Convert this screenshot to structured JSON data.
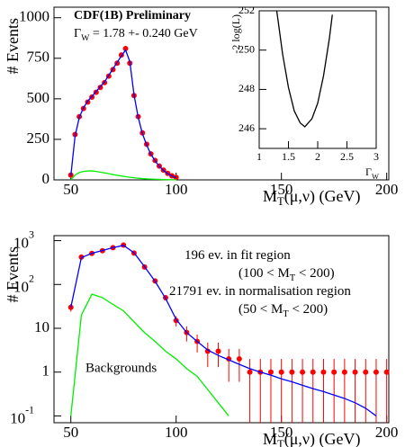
{
  "chart_data": [
    {
      "type": "line",
      "title": "CDF(1B) Preliminary",
      "title_color": "#ff00ff",
      "annotation": {
        "text": "Γ",
        "sub": "W",
        "rest": " = 1.78 +- 0.240 GeV",
        "color": "#ff0000"
      },
      "y_label": "# Events",
      "x_label": {
        "text": "M",
        "sub": "T",
        "rest": "(μ,ν) (GeV)"
      },
      "xlim": [
        42,
        201
      ],
      "xticks": [
        50,
        100,
        150,
        200
      ],
      "ylim": [
        0,
        1065
      ],
      "yticks": [
        0,
        250,
        500,
        750,
        1000
      ],
      "x": [
        50,
        52,
        54,
        56,
        58,
        60,
        62,
        64,
        66,
        68,
        70,
        72,
        74,
        76,
        78,
        80,
        82,
        84,
        86,
        88,
        90,
        92,
        94,
        96,
        98,
        100
      ],
      "series": [
        {
          "style": "points",
          "color": "#ff0000",
          "values": [
            30,
            280,
            390,
            440,
            480,
            510,
            540,
            570,
            600,
            640,
            680,
            720,
            770,
            810,
            720,
            520,
            390,
            290,
            220,
            160,
            120,
            85,
            60,
            40,
            25,
            15
          ]
        },
        {
          "style": "line",
          "color": "#0000ff",
          "values": [
            25,
            270,
            385,
            445,
            485,
            515,
            545,
            575,
            605,
            645,
            685,
            725,
            765,
            800,
            730,
            525,
            385,
            285,
            215,
            158,
            118,
            84,
            58,
            38,
            24,
            14
          ]
        },
        {
          "style": "line",
          "color": "#00ee00",
          "values": [
            0,
            30,
            45,
            52,
            55,
            55,
            52,
            48,
            43,
            38,
            33,
            28,
            24,
            20,
            16,
            13,
            10,
            8,
            6,
            5,
            4,
            3,
            2,
            1.5,
            1,
            0.8
          ]
        }
      ]
    },
    {
      "type": "line",
      "log_y": true,
      "y_label": "# Events",
      "x_label": {
        "text": "M",
        "sub": "T",
        "rest": "(μ,ν) (GeV)"
      },
      "annotations": [
        {
          "text": "196 ev. in fit region"
        },
        {
          "text": "(100 < M",
          "sub": "T",
          "rest": " < 200)"
        },
        {
          "text": "21791 ev. in normalisation region"
        },
        {
          "text": "(50 < M",
          "sub": "T",
          "rest": " < 200)"
        }
      ],
      "xlim": [
        42,
        201
      ],
      "xticks": [
        50,
        100,
        150,
        200
      ],
      "ylim": [
        0.07,
        1300
      ],
      "yticks": [
        {
          "value": 0.1,
          "label": "10",
          "exp": "-1"
        },
        1,
        10,
        {
          "value": 100,
          "label": "10",
          "exp": "2"
        },
        {
          "value": 1000,
          "label": "10",
          "exp": "3"
        }
      ],
      "x": [
        50,
        55,
        60,
        65,
        70,
        75,
        80,
        85,
        90,
        95,
        100,
        105,
        110,
        115,
        120,
        125,
        130,
        135,
        140,
        145,
        150,
        155,
        160,
        165,
        170,
        175,
        180,
        185,
        190,
        195,
        200
      ],
      "series": [
        {
          "style": "points",
          "color": "#ff0000",
          "values": [
            30,
            420,
            510,
            590,
            690,
            790,
            520,
            250,
            120,
            50,
            15,
            8,
            5,
            3,
            3,
            2,
            2,
            1,
            1,
            1,
            1,
            1,
            1,
            1,
            1,
            1,
            1,
            1,
            1,
            1,
            1
          ],
          "errors": [
            6,
            20,
            22,
            24,
            26,
            28,
            23,
            16,
            11,
            7,
            4,
            3,
            2.2,
            1.7,
            1.7,
            1.4,
            1.4,
            1,
            1,
            1,
            1,
            1,
            1,
            1,
            1,
            1,
            1,
            1,
            1,
            1,
            1
          ]
        },
        {
          "style": "line",
          "color": "#0000ff",
          "values": [
            30,
            410,
            515,
            595,
            690,
            780,
            530,
            255,
            118,
            48,
            16,
            8,
            5,
            3.2,
            2.4,
            1.9,
            1.5,
            1.2,
            1.0,
            0.85,
            0.7,
            0.6,
            0.5,
            0.42,
            0.36,
            0.3,
            0.25,
            0.2,
            0.15,
            0.1,
            null
          ]
        },
        {
          "style": "line",
          "color": "#00ee00",
          "name": "Backgrounds",
          "values": [
            0.1,
            20,
            60,
            50,
            35,
            25,
            14,
            8,
            5,
            3,
            2,
            1.2,
            0.8,
            0.4,
            0.2,
            0.1,
            null,
            null,
            null,
            null,
            null,
            null,
            null,
            null,
            null,
            null,
            null,
            null,
            null,
            null,
            null
          ]
        }
      ]
    },
    {
      "type": "line",
      "y_label": "-2 log(L)",
      "x_label": {
        "text": "Γ",
        "sub": "W"
      },
      "xlim": [
        1,
        3
      ],
      "xticks": [
        1,
        1.5,
        2,
        2.5,
        3
      ],
      "ylim": [
        245,
        252
      ],
      "yticks": [
        246,
        248,
        250,
        252
      ],
      "x": [
        1.3,
        1.4,
        1.5,
        1.6,
        1.7,
        1.78,
        1.9,
        2.0,
        2.1,
        2.2,
        2.25
      ],
      "series": [
        {
          "style": "line",
          "color": "#000000",
          "values": [
            252,
            249.8,
            248.1,
            246.9,
            246.3,
            246.1,
            246.5,
            247.3,
            248.7,
            250.6,
            251.8
          ]
        }
      ]
    }
  ]
}
